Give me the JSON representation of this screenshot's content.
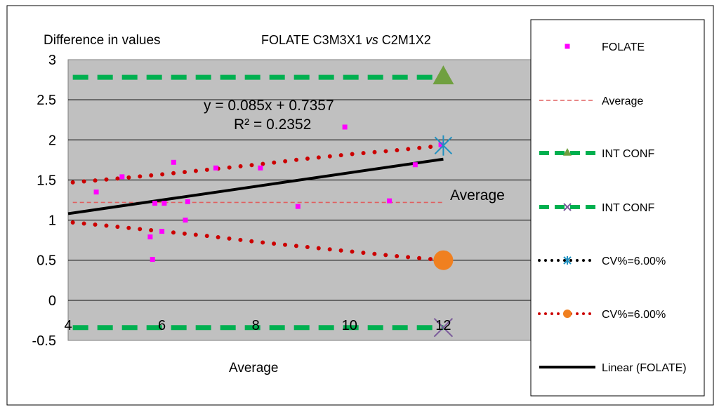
{
  "chart_data": {
    "type": "scatter",
    "title_main": "FOLATE C3M3X1 ",
    "title_vs": "vs",
    "title_rest": " C2M1X2",
    "ylabel": "Difference in values",
    "xlabel": "Average",
    "xlim": [
      4,
      14
    ],
    "ylim": [
      -0.5,
      3
    ],
    "x_ticks": [
      {
        "value": 4,
        "label": "4"
      },
      {
        "value": 6,
        "label": "6"
      },
      {
        "value": 8,
        "label": "8"
      },
      {
        "value": 10,
        "label": "10"
      },
      {
        "value": 12,
        "label": "12"
      }
    ],
    "y_ticks": [
      {
        "value": 3,
        "label": "3"
      },
      {
        "value": 2.5,
        "label": "2.5"
      },
      {
        "value": 2,
        "label": "2"
      },
      {
        "value": 1.5,
        "label": "1.5"
      },
      {
        "value": 1,
        "label": "1"
      },
      {
        "value": 0.5,
        "label": "0.5"
      },
      {
        "value": 0,
        "label": "0"
      },
      {
        "value": -0.5,
        "label": "-0.5"
      }
    ],
    "grid": true,
    "annotations": {
      "equation": "y = 0.085x + 0.7357",
      "r_squared": "R² = 0.2352",
      "average_label": "Average"
    },
    "legend_position": "right",
    "series": [
      {
        "name": "FOLATE",
        "kind": "points",
        "color": "#ff00ff",
        "points": [
          [
            4.6,
            1.35
          ],
          [
            5.15,
            1.54
          ],
          [
            5.75,
            0.79
          ],
          [
            5.8,
            0.51
          ],
          [
            5.85,
            1.21
          ],
          [
            6.0,
            0.86
          ],
          [
            6.05,
            1.21
          ],
          [
            6.25,
            1.72
          ],
          [
            6.5,
            1.0
          ],
          [
            6.55,
            1.23
          ],
          [
            7.15,
            1.65
          ],
          [
            8.1,
            1.65
          ],
          [
            8.9,
            1.17
          ],
          [
            9.9,
            2.16
          ],
          [
            10.85,
            1.24
          ],
          [
            11.4,
            1.69
          ],
          [
            11.95,
            1.94
          ]
        ]
      },
      {
        "name": "Average",
        "kind": "line",
        "color": "#e06060",
        "points": [
          [
            4.1,
            1.22
          ],
          [
            12,
            1.22
          ]
        ]
      },
      {
        "name": "INT CONF",
        "kind": "line",
        "color": "#00b050",
        "marker_color": "#70a040",
        "points": [
          [
            4.1,
            2.78
          ],
          [
            12,
            2.78
          ]
        ]
      },
      {
        "name": "INT CONF",
        "kind": "line",
        "color": "#00b050",
        "marker_color": "#7a5a9a",
        "points": [
          [
            4.1,
            -0.34
          ],
          [
            12,
            -0.34
          ]
        ]
      },
      {
        "name": "CV%=6.00%",
        "kind": "dotted",
        "color": "#cc0000",
        "marker_color": "#2090c0",
        "points": [
          [
            4.1,
            1.47
          ],
          [
            5,
            1.515
          ],
          [
            6,
            1.57
          ],
          [
            7,
            1.63
          ],
          [
            8,
            1.69
          ],
          [
            9,
            1.76
          ],
          [
            10,
            1.82
          ],
          [
            11,
            1.87
          ],
          [
            12,
            1.93
          ]
        ]
      },
      {
        "name": "CV%=6.00%",
        "kind": "dotted",
        "color": "#cc0000",
        "marker_color": "#f08020",
        "points": [
          [
            4.1,
            0.97
          ],
          [
            5,
            0.92
          ],
          [
            6,
            0.86
          ],
          [
            7,
            0.8
          ],
          [
            8,
            0.73
          ],
          [
            9,
            0.67
          ],
          [
            10,
            0.61
          ],
          [
            11,
            0.55
          ],
          [
            12,
            0.5
          ]
        ]
      },
      {
        "name": "Linear (FOLATE)",
        "kind": "line",
        "color": "#000000",
        "points": [
          [
            4,
            1.08
          ],
          [
            12,
            1.76
          ]
        ]
      }
    ],
    "legend": [
      {
        "label": "FOLATE",
        "style": "square",
        "color": "#ff00ff"
      },
      {
        "label": "Average",
        "style": "dashed-thin",
        "color": "#e06060"
      },
      {
        "label": "INT CONF",
        "style": "dashed-thick-triangle",
        "color": "#00b050",
        "marker_color": "#70a040"
      },
      {
        "label": "INT CONF",
        "style": "dashed-thick-x",
        "color": "#00b050",
        "marker_color": "#7a5a9a"
      },
      {
        "label": "CV%=6.00%",
        "style": "dotted-star",
        "color": "#000000",
        "marker_color": "#2090c0"
      },
      {
        "label": "CV%=6.00%",
        "style": "dotted-circle",
        "color": "#cc0000",
        "marker_color": "#f08020"
      },
      {
        "label": "Linear (FOLATE)",
        "style": "solid-thick",
        "color": "#000000"
      }
    ]
  }
}
